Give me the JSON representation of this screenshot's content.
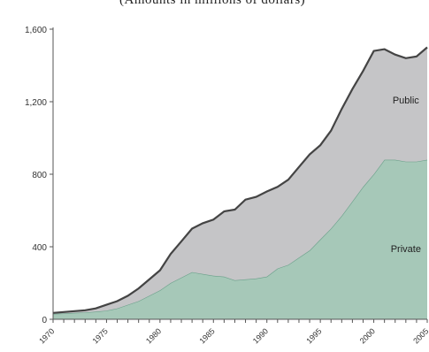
{
  "top_text": "(Amounts in millions of dollars)",
  "chart_data": {
    "type": "area",
    "stacked": true,
    "xlim": [
      1970,
      2005
    ],
    "ylim": [
      0,
      1600
    ],
    "y_ticks": [
      0,
      400,
      800,
      1200,
      1600
    ],
    "y_tick_labels": [
      "0",
      "400",
      "800",
      "1,200",
      "1,600"
    ],
    "x_tick_labels": [
      "1970",
      "1975",
      "1980",
      "1985",
      "1990",
      "1995",
      "2000",
      "2005"
    ],
    "x_tick_positions": [
      1970,
      1975,
      1980,
      1985,
      1990,
      1995,
      2000,
      2005
    ],
    "x_minor_ticks_every": 1,
    "grid": false,
    "series": [
      {
        "name": "Private",
        "color": "#a6c8b8",
        "line_color": "#6aa08a",
        "x": [
          1970,
          1971,
          1972,
          1973,
          1974,
          1975,
          1976,
          1977,
          1978,
          1979,
          1980,
          1981,
          1982,
          1983,
          1984,
          1985,
          1986,
          1987,
          1988,
          1989,
          1990,
          1991,
          1992,
          1993,
          1994,
          1995,
          1996,
          1997,
          1998,
          1999,
          2000,
          2001,
          2002,
          2003,
          2004,
          2005
        ],
        "values": [
          30,
          32,
          35,
          38,
          42,
          48,
          60,
          80,
          100,
          130,
          160,
          200,
          230,
          260,
          250,
          240,
          235,
          215,
          220,
          225,
          235,
          280,
          300,
          340,
          380,
          440,
          500,
          570,
          650,
          730,
          800,
          880,
          880,
          870,
          870,
          880
        ]
      },
      {
        "name": "Public",
        "color": "#c5c5c7",
        "line_color": "#444444",
        "x": [
          1970,
          1971,
          1972,
          1973,
          1974,
          1975,
          1976,
          1977,
          1978,
          1979,
          1980,
          1981,
          1982,
          1983,
          1984,
          1985,
          1986,
          1987,
          1988,
          1989,
          1990,
          1991,
          1992,
          1993,
          1994,
          1995,
          1996,
          1997,
          1998,
          1999,
          2000,
          2001,
          2002,
          2003,
          2004,
          2005
        ],
        "values": [
          5,
          8,
          10,
          12,
          18,
          32,
          40,
          50,
          70,
          90,
          110,
          160,
          200,
          240,
          280,
          310,
          360,
          390,
          440,
          450,
          470,
          450,
          470,
          500,
          530,
          520,
          540,
          590,
          620,
          640,
          680,
          610,
          580,
          570,
          580,
          620
        ]
      }
    ],
    "annotations": [
      {
        "text": "Public",
        "series": "Public",
        "x": 2003,
        "y": 1210
      },
      {
        "text": "Private",
        "series": "Private",
        "x": 2003,
        "y": 390
      }
    ],
    "axis_color": "#555555"
  }
}
